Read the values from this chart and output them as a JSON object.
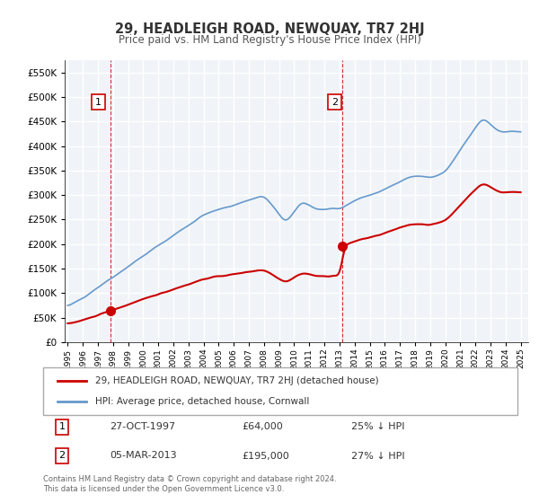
{
  "title": "29, HEADLEIGH ROAD, NEWQUAY, TR7 2HJ",
  "subtitle": "Price paid vs. HM Land Registry's House Price Index (HPI)",
  "legend_label1": "29, HEADLEIGH ROAD, NEWQUAY, TR7 2HJ (detached house)",
  "legend_label2": "HPI: Average price, detached house, Cornwall",
  "sale1_date": "27-OCT-1997",
  "sale1_price": 64000,
  "sale1_pct": "25% ↓ HPI",
  "sale2_date": "05-MAR-2013",
  "sale2_price": 195000,
  "sale2_pct": "27% ↓ HPI",
  "sale1_x": 1997.82,
  "sale2_x": 2013.17,
  "footnote": "Contains HM Land Registry data © Crown copyright and database right 2024.\nThis data is licensed under the Open Government Licence v3.0.",
  "color_red": "#cc0000",
  "color_blue": "#6699cc",
  "color_bg": "#f0f4f8",
  "color_grid": "#ffffff",
  "ylim": [
    0,
    575000
  ],
  "xlim_left": 1994.8,
  "xlim_right": 2025.5
}
